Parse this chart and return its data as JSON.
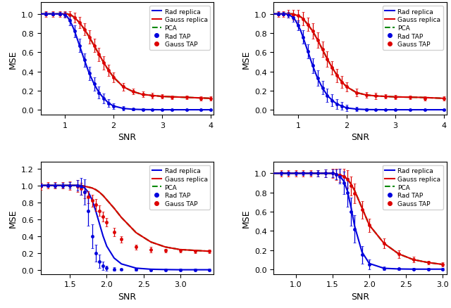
{
  "subplots": [
    {
      "xlabel": "SNR",
      "ylabel": "MSE",
      "xlim": [
        0.5,
        4.05
      ],
      "ylim": [
        -0.05,
        1.12
      ],
      "xticks": [
        1,
        2,
        3,
        4
      ],
      "yticks": [
        0.0,
        0.2,
        0.4,
        0.6,
        0.8,
        1.0
      ],
      "rad_replica_x": [
        0.5,
        0.6,
        0.7,
        0.75,
        0.8,
        0.85,
        0.9,
        0.95,
        1.0,
        1.05,
        1.1,
        1.15,
        1.2,
        1.3,
        1.4,
        1.5,
        1.6,
        1.7,
        1.8,
        1.9,
        2.0,
        2.2,
        2.4,
        2.6,
        2.8,
        3.0,
        3.5,
        4.0
      ],
      "rad_replica_y": [
        1.0,
        1.0,
        1.0,
        1.0,
        1.0,
        1.0,
        1.0,
        1.0,
        0.99,
        0.97,
        0.93,
        0.88,
        0.82,
        0.67,
        0.52,
        0.38,
        0.27,
        0.18,
        0.12,
        0.07,
        0.04,
        0.015,
        0.006,
        0.003,
        0.002,
        0.001,
        0.001,
        0.001
      ],
      "gauss_replica_x": [
        0.5,
        0.6,
        0.7,
        0.75,
        0.8,
        0.85,
        0.9,
        0.95,
        1.0,
        1.05,
        1.1,
        1.15,
        1.2,
        1.3,
        1.4,
        1.5,
        1.6,
        1.7,
        1.8,
        1.9,
        2.0,
        2.2,
        2.4,
        2.6,
        2.8,
        3.0,
        3.5,
        4.0
      ],
      "gauss_replica_y": [
        1.0,
        1.0,
        1.0,
        1.0,
        1.0,
        1.0,
        1.0,
        1.0,
        1.0,
        1.0,
        0.99,
        0.98,
        0.96,
        0.91,
        0.84,
        0.76,
        0.67,
        0.58,
        0.49,
        0.41,
        0.34,
        0.24,
        0.19,
        0.16,
        0.15,
        0.14,
        0.13,
        0.12
      ],
      "pca_x": [
        0.5,
        0.6,
        0.7,
        0.75,
        0.8,
        0.85,
        0.9,
        0.95,
        1.0,
        1.05,
        1.1,
        1.15,
        1.2,
        1.3,
        1.4,
        1.5,
        1.6,
        1.7,
        1.8,
        1.9,
        2.0,
        2.2,
        2.4,
        2.6,
        2.8,
        3.0,
        3.5,
        4.0
      ],
      "pca_y": [
        1.0,
        1.0,
        1.0,
        1.0,
        1.0,
        1.0,
        1.0,
        1.0,
        1.0,
        1.0,
        0.99,
        0.98,
        0.96,
        0.91,
        0.84,
        0.76,
        0.67,
        0.58,
        0.49,
        0.41,
        0.34,
        0.24,
        0.19,
        0.16,
        0.15,
        0.14,
        0.13,
        0.12
      ],
      "rad_tap_x": [
        0.6,
        0.75,
        0.9,
        1.0,
        1.1,
        1.2,
        1.3,
        1.4,
        1.5,
        1.6,
        1.7,
        1.8,
        1.9,
        2.0,
        2.2,
        2.4,
        2.6,
        2.8,
        3.0,
        3.2,
        3.5,
        3.8,
        4.0
      ],
      "rad_tap_y": [
        1.0,
        1.0,
        1.0,
        0.99,
        0.93,
        0.82,
        0.67,
        0.52,
        0.38,
        0.27,
        0.18,
        0.12,
        0.07,
        0.04,
        0.015,
        0.006,
        0.003,
        0.002,
        0.001,
        0.001,
        0.001,
        0.001,
        0.001
      ],
      "rad_tap_err": [
        0.02,
        0.02,
        0.02,
        0.03,
        0.05,
        0.06,
        0.07,
        0.07,
        0.07,
        0.07,
        0.06,
        0.05,
        0.04,
        0.03,
        0.02,
        0.01,
        0.01,
        0.01,
        0.01,
        0.01,
        0.01,
        0.01,
        0.01
      ],
      "gauss_tap_x": [
        0.6,
        0.75,
        0.9,
        1.0,
        1.1,
        1.2,
        1.3,
        1.4,
        1.5,
        1.6,
        1.7,
        1.8,
        1.9,
        2.0,
        2.2,
        2.4,
        2.6,
        2.8,
        3.0,
        3.2,
        3.5,
        3.8,
        4.0
      ],
      "gauss_tap_y": [
        1.0,
        1.0,
        1.0,
        1.0,
        0.99,
        0.96,
        0.91,
        0.84,
        0.76,
        0.67,
        0.58,
        0.49,
        0.41,
        0.34,
        0.24,
        0.19,
        0.16,
        0.15,
        0.14,
        0.13,
        0.13,
        0.12,
        0.12
      ],
      "gauss_tap_err": [
        0.03,
        0.03,
        0.03,
        0.03,
        0.04,
        0.05,
        0.06,
        0.06,
        0.07,
        0.07,
        0.07,
        0.07,
        0.06,
        0.05,
        0.04,
        0.03,
        0.03,
        0.03,
        0.02,
        0.02,
        0.02,
        0.02,
        0.02
      ]
    },
    {
      "xlabel": "SNR",
      "ylabel": "MSE",
      "xlim": [
        0.5,
        4.05
      ],
      "ylim": [
        -0.05,
        1.12
      ],
      "xticks": [
        1,
        2,
        3,
        4
      ],
      "yticks": [
        0.0,
        0.2,
        0.4,
        0.6,
        0.8,
        1.0
      ],
      "rad_replica_x": [
        0.5,
        0.6,
        0.65,
        0.7,
        0.75,
        0.8,
        0.85,
        0.9,
        0.95,
        1.0,
        1.05,
        1.1,
        1.2,
        1.3,
        1.4,
        1.5,
        1.6,
        1.7,
        1.8,
        1.9,
        2.0,
        2.2,
        2.4,
        2.6,
        2.8,
        3.0,
        3.5,
        4.0
      ],
      "rad_replica_y": [
        1.0,
        1.0,
        1.0,
        1.0,
        1.0,
        0.99,
        0.98,
        0.96,
        0.93,
        0.88,
        0.83,
        0.76,
        0.61,
        0.46,
        0.33,
        0.23,
        0.15,
        0.1,
        0.06,
        0.04,
        0.02,
        0.008,
        0.003,
        0.002,
        0.001,
        0.001,
        0.001,
        0.001
      ],
      "gauss_replica_x": [
        0.5,
        0.6,
        0.65,
        0.7,
        0.75,
        0.8,
        0.85,
        0.9,
        0.95,
        1.0,
        1.05,
        1.1,
        1.2,
        1.3,
        1.4,
        1.5,
        1.6,
        1.7,
        1.8,
        1.9,
        2.0,
        2.2,
        2.4,
        2.6,
        2.8,
        3.0,
        3.5,
        4.0
      ],
      "gauss_replica_y": [
        1.0,
        1.0,
        1.0,
        1.0,
        1.0,
        1.0,
        1.0,
        1.0,
        0.99,
        0.98,
        0.97,
        0.95,
        0.89,
        0.82,
        0.73,
        0.63,
        0.53,
        0.44,
        0.36,
        0.29,
        0.24,
        0.18,
        0.155,
        0.145,
        0.14,
        0.135,
        0.13,
        0.12
      ],
      "pca_x": [
        0.5,
        0.6,
        0.65,
        0.7,
        0.75,
        0.8,
        0.85,
        0.9,
        0.95,
        1.0,
        1.05,
        1.1,
        1.2,
        1.3,
        1.4,
        1.5,
        1.6,
        1.7,
        1.8,
        1.9,
        2.0,
        2.2,
        2.4,
        2.6,
        2.8,
        3.0,
        3.5,
        4.0
      ],
      "pca_y": [
        1.0,
        1.0,
        1.0,
        1.0,
        1.0,
        1.0,
        1.0,
        1.0,
        0.99,
        0.98,
        0.97,
        0.95,
        0.89,
        0.82,
        0.73,
        0.63,
        0.53,
        0.44,
        0.36,
        0.29,
        0.24,
        0.18,
        0.155,
        0.145,
        0.14,
        0.135,
        0.13,
        0.12
      ],
      "rad_tap_x": [
        0.6,
        0.7,
        0.8,
        0.9,
        1.0,
        1.1,
        1.2,
        1.3,
        1.4,
        1.5,
        1.6,
        1.7,
        1.8,
        1.9,
        2.0,
        2.2,
        2.4,
        2.6,
        2.8,
        3.0,
        3.3,
        3.6,
        4.0
      ],
      "rad_tap_y": [
        1.0,
        1.0,
        0.99,
        0.96,
        0.88,
        0.76,
        0.61,
        0.46,
        0.33,
        0.23,
        0.15,
        0.1,
        0.06,
        0.04,
        0.02,
        0.008,
        0.003,
        0.002,
        0.001,
        0.001,
        0.001,
        0.001,
        0.001
      ],
      "rad_tap_err": [
        0.02,
        0.02,
        0.03,
        0.04,
        0.05,
        0.07,
        0.07,
        0.08,
        0.08,
        0.07,
        0.07,
        0.06,
        0.05,
        0.04,
        0.03,
        0.02,
        0.01,
        0.01,
        0.01,
        0.01,
        0.01,
        0.01,
        0.01
      ],
      "gauss_tap_x": [
        0.6,
        0.7,
        0.8,
        0.9,
        1.0,
        1.1,
        1.2,
        1.3,
        1.4,
        1.5,
        1.6,
        1.7,
        1.8,
        1.9,
        2.0,
        2.2,
        2.4,
        2.6,
        2.8,
        3.0,
        3.3,
        3.6,
        4.0
      ],
      "gauss_tap_y": [
        1.0,
        1.0,
        1.0,
        0.99,
        0.98,
        0.95,
        0.89,
        0.82,
        0.73,
        0.63,
        0.53,
        0.44,
        0.36,
        0.29,
        0.24,
        0.18,
        0.155,
        0.145,
        0.14,
        0.135,
        0.13,
        0.12,
        0.12
      ],
      "gauss_tap_err": [
        0.03,
        0.03,
        0.04,
        0.05,
        0.06,
        0.07,
        0.07,
        0.08,
        0.08,
        0.08,
        0.08,
        0.07,
        0.07,
        0.06,
        0.05,
        0.04,
        0.03,
        0.03,
        0.02,
        0.02,
        0.02,
        0.02,
        0.02
      ]
    },
    {
      "xlabel": "SNR",
      "ylabel": "MSE",
      "xlim": [
        1.1,
        3.45
      ],
      "ylim": [
        -0.05,
        1.28
      ],
      "xticks": [
        1.5,
        2.0,
        2.5,
        3.0
      ],
      "yticks": [
        0.0,
        0.2,
        0.4,
        0.6,
        0.8,
        1.0,
        1.2
      ],
      "rad_replica_x": [
        1.1,
        1.2,
        1.3,
        1.4,
        1.5,
        1.55,
        1.6,
        1.65,
        1.7,
        1.75,
        1.8,
        1.85,
        1.9,
        1.95,
        2.0,
        2.1,
        2.2,
        2.4,
        2.6,
        2.8,
        3.0,
        3.2,
        3.4
      ],
      "rad_replica_y": [
        1.0,
        1.0,
        1.0,
        1.0,
        1.0,
        1.0,
        1.0,
        0.99,
        0.97,
        0.92,
        0.83,
        0.7,
        0.55,
        0.4,
        0.28,
        0.14,
        0.07,
        0.02,
        0.007,
        0.003,
        0.001,
        0.001,
        0.001
      ],
      "gauss_replica_x": [
        1.1,
        1.2,
        1.3,
        1.4,
        1.5,
        1.55,
        1.6,
        1.65,
        1.7,
        1.75,
        1.8,
        1.85,
        1.9,
        1.95,
        2.0,
        2.1,
        2.2,
        2.4,
        2.6,
        2.8,
        3.0,
        3.2,
        3.4
      ],
      "gauss_replica_y": [
        1.0,
        1.0,
        1.0,
        1.0,
        1.0,
        1.0,
        1.0,
        1.0,
        0.99,
        0.98,
        0.97,
        0.95,
        0.92,
        0.88,
        0.83,
        0.73,
        0.62,
        0.44,
        0.33,
        0.27,
        0.24,
        0.23,
        0.22
      ],
      "pca_x": [
        1.1,
        1.2,
        1.3,
        1.4,
        1.5,
        1.55,
        1.6,
        1.65,
        1.7,
        1.75,
        1.8,
        1.85,
        1.9,
        1.95,
        2.0,
        2.1,
        2.2,
        2.4,
        2.6,
        2.8,
        3.0,
        3.2,
        3.4
      ],
      "pca_y": [
        1.0,
        1.0,
        1.0,
        1.0,
        1.0,
        1.0,
        1.0,
        1.0,
        0.99,
        0.98,
        0.97,
        0.95,
        0.92,
        0.88,
        0.83,
        0.73,
        0.62,
        0.44,
        0.33,
        0.27,
        0.24,
        0.23,
        0.22
      ],
      "rad_tap_x": [
        1.1,
        1.2,
        1.3,
        1.4,
        1.5,
        1.6,
        1.65,
        1.7,
        1.75,
        1.8,
        1.85,
        1.9,
        1.95,
        2.0,
        2.1,
        2.2,
        2.4,
        2.6,
        2.8,
        3.0,
        3.2,
        3.4
      ],
      "rad_tap_y": [
        1.0,
        1.0,
        1.0,
        1.0,
        1.0,
        1.0,
        0.99,
        0.92,
        0.7,
        0.4,
        0.2,
        0.1,
        0.05,
        0.02,
        0.01,
        0.005,
        0.002,
        0.001,
        0.001,
        0.001,
        0.001,
        0.001
      ],
      "rad_tap_err": [
        0.02,
        0.02,
        0.03,
        0.03,
        0.04,
        0.06,
        0.1,
        0.15,
        0.18,
        0.14,
        0.1,
        0.08,
        0.05,
        0.03,
        0.02,
        0.01,
        0.01,
        0.01,
        0.01,
        0.01,
        0.01,
        0.01
      ],
      "gauss_tap_x": [
        1.1,
        1.2,
        1.3,
        1.4,
        1.5,
        1.6,
        1.65,
        1.7,
        1.75,
        1.8,
        1.85,
        1.9,
        1.95,
        2.0,
        2.1,
        2.2,
        2.4,
        2.6,
        2.8,
        3.0,
        3.2,
        3.4
      ],
      "gauss_tap_y": [
        0.99,
        1.0,
        1.0,
        1.0,
        1.0,
        0.99,
        0.96,
        0.92,
        0.86,
        0.82,
        0.77,
        0.7,
        0.63,
        0.56,
        0.45,
        0.36,
        0.27,
        0.24,
        0.23,
        0.23,
        0.22,
        0.22
      ],
      "gauss_tap_err": [
        0.04,
        0.04,
        0.04,
        0.04,
        0.05,
        0.07,
        0.07,
        0.07,
        0.07,
        0.07,
        0.07,
        0.06,
        0.06,
        0.05,
        0.05,
        0.04,
        0.03,
        0.03,
        0.02,
        0.02,
        0.02,
        0.02
      ]
    },
    {
      "xlabel": "SNR",
      "ylabel": "MSE",
      "xlim": [
        0.7,
        3.05
      ],
      "ylim": [
        -0.05,
        1.12
      ],
      "xticks": [
        1.0,
        1.5,
        2.0,
        2.5,
        3.0
      ],
      "yticks": [
        0.0,
        0.2,
        0.4,
        0.6,
        0.8,
        1.0
      ],
      "rad_replica_x": [
        0.7,
        0.8,
        0.9,
        1.0,
        1.1,
        1.2,
        1.3,
        1.4,
        1.45,
        1.5,
        1.55,
        1.6,
        1.65,
        1.7,
        1.75,
        1.8,
        1.9,
        2.0,
        2.2,
        2.4,
        2.6,
        2.8,
        3.0
      ],
      "rad_replica_y": [
        1.0,
        1.0,
        1.0,
        1.0,
        1.0,
        1.0,
        1.0,
        1.0,
        1.0,
        1.0,
        0.99,
        0.97,
        0.92,
        0.82,
        0.65,
        0.45,
        0.18,
        0.06,
        0.01,
        0.003,
        0.001,
        0.001,
        0.001
      ],
      "gauss_replica_x": [
        0.7,
        0.8,
        0.9,
        1.0,
        1.1,
        1.2,
        1.3,
        1.4,
        1.45,
        1.5,
        1.55,
        1.6,
        1.65,
        1.7,
        1.75,
        1.8,
        1.9,
        2.0,
        2.2,
        2.4,
        2.6,
        2.8,
        3.0
      ],
      "gauss_replica_y": [
        1.0,
        1.0,
        1.0,
        1.0,
        1.0,
        1.0,
        1.0,
        1.0,
        1.0,
        1.0,
        0.99,
        0.98,
        0.97,
        0.94,
        0.89,
        0.82,
        0.64,
        0.46,
        0.27,
        0.16,
        0.1,
        0.07,
        0.05
      ],
      "pca_x": [
        0.7,
        0.8,
        0.9,
        1.0,
        1.1,
        1.2,
        1.3,
        1.4,
        1.45,
        1.5,
        1.55,
        1.6,
        1.65,
        1.7,
        1.75,
        1.8,
        1.9,
        2.0,
        2.2,
        2.4,
        2.6,
        2.8,
        3.0
      ],
      "pca_y": [
        1.0,
        1.0,
        1.0,
        1.0,
        1.0,
        1.0,
        1.0,
        1.0,
        1.0,
        1.0,
        0.99,
        0.98,
        0.97,
        0.94,
        0.89,
        0.82,
        0.64,
        0.46,
        0.27,
        0.16,
        0.1,
        0.07,
        0.05
      ],
      "rad_tap_x": [
        0.8,
        0.9,
        1.0,
        1.1,
        1.2,
        1.3,
        1.4,
        1.5,
        1.55,
        1.6,
        1.65,
        1.7,
        1.75,
        1.8,
        1.9,
        2.0,
        2.2,
        2.4,
        2.6,
        2.8,
        3.0
      ],
      "rad_tap_y": [
        1.0,
        1.0,
        1.0,
        1.0,
        1.0,
        1.0,
        1.0,
        1.0,
        0.99,
        0.97,
        0.9,
        0.8,
        0.6,
        0.42,
        0.15,
        0.05,
        0.01,
        0.003,
        0.001,
        0.001,
        0.001
      ],
      "rad_tap_err": [
        0.02,
        0.02,
        0.02,
        0.02,
        0.02,
        0.03,
        0.04,
        0.04,
        0.05,
        0.08,
        0.12,
        0.15,
        0.15,
        0.14,
        0.09,
        0.05,
        0.02,
        0.01,
        0.01,
        0.01,
        0.01
      ],
      "gauss_tap_x": [
        0.8,
        0.9,
        1.0,
        1.1,
        1.2,
        1.3,
        1.4,
        1.5,
        1.55,
        1.6,
        1.65,
        1.7,
        1.75,
        1.8,
        1.9,
        2.0,
        2.2,
        2.4,
        2.6,
        2.8,
        3.0
      ],
      "gauss_tap_y": [
        1.0,
        1.0,
        1.0,
        1.0,
        1.0,
        1.0,
        1.0,
        1.0,
        0.99,
        0.98,
        0.97,
        0.94,
        0.87,
        0.79,
        0.62,
        0.46,
        0.27,
        0.16,
        0.1,
        0.07,
        0.05
      ],
      "gauss_tap_err": [
        0.03,
        0.03,
        0.03,
        0.03,
        0.03,
        0.03,
        0.04,
        0.05,
        0.06,
        0.07,
        0.08,
        0.09,
        0.1,
        0.1,
        0.09,
        0.07,
        0.05,
        0.04,
        0.03,
        0.02,
        0.02
      ]
    }
  ],
  "colors": {
    "rad_replica": "#0000dd",
    "gauss_replica": "#dd0000",
    "pca": "#008800",
    "rad_tap": "#0000dd",
    "gauss_tap": "#dd0000"
  },
  "legend_entries": [
    "Rad replica",
    "Gauss replica",
    "PCA",
    "Rad TAP",
    "Gauss TAP"
  ]
}
